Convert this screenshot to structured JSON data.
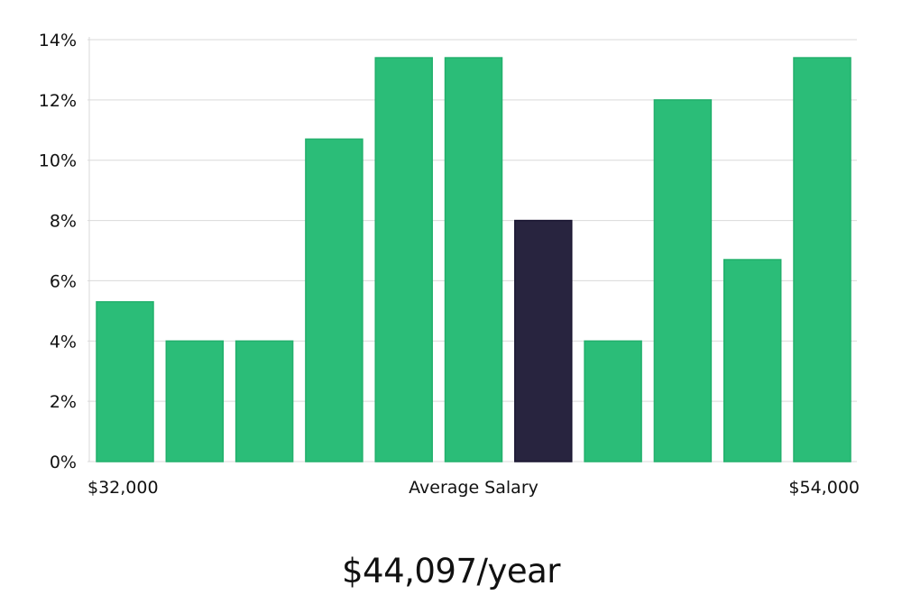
{
  "chart_data": {
    "type": "bar",
    "title": "",
    "xlabel": "Average Salary",
    "ylabel": "",
    "x_start_label": "$32,000",
    "x_end_label": "$54,000",
    "ylim": [
      0,
      14
    ],
    "y_ticks": [
      "0%",
      "2%",
      "4%",
      "6%",
      "8%",
      "10%",
      "12%",
      "14%"
    ],
    "values": [
      5.3,
      4.0,
      4.0,
      10.7,
      13.4,
      13.4,
      8.0,
      4.0,
      12.0,
      6.7,
      13.4
    ],
    "highlight_index": 6,
    "colors": {
      "bar": "#2bbd78",
      "bar_stroke": "#22b06c",
      "highlight": "#28243f",
      "highlight_stroke": "#1a1632",
      "grid": "#d9d9d9"
    },
    "grid": true
  },
  "summary": {
    "salary_text": "$44,097/year"
  }
}
